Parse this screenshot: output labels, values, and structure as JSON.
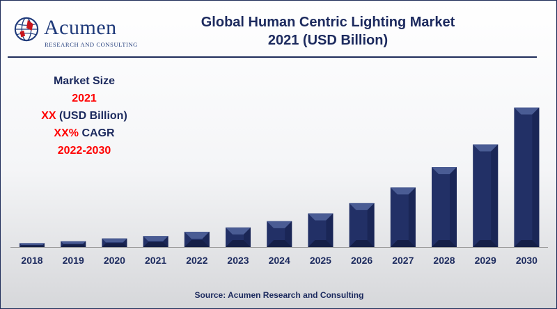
{
  "logo": {
    "name": "Acumen",
    "tagline": "RESEARCH AND CONSULTING"
  },
  "title_line1": "Global Human Centric Lighting Market",
  "title_line2": "2021 (USD Billion)",
  "info": {
    "line1": "Market Size",
    "line2": "2021",
    "line3_a": "XX",
    "line3_b": " (USD Billion)",
    "line4_a": "XX%",
    "line4_b": " CAGR",
    "line5": "2022-2030"
  },
  "source": "Source: Acumen Research and Consulting",
  "colors": {
    "bar": "#223066",
    "bar_highlight": "#4a5c94",
    "title": "#1c2a5e",
    "accent_red": "#ff0000"
  },
  "chart_data": {
    "type": "bar",
    "categories": [
      "2018",
      "2019",
      "2020",
      "2021",
      "2022",
      "2023",
      "2024",
      "2025",
      "2026",
      "2027",
      "2028",
      "2029",
      "2030"
    ],
    "values": [
      1.0,
      1.5,
      2.2,
      2.8,
      3.9,
      5.0,
      6.6,
      8.6,
      11.2,
      15.2,
      20.4,
      26.2,
      35.6
    ],
    "title": "Global Human Centric Lighting Market 2021 (USD Billion)",
    "xlabel": "",
    "ylabel": "",
    "ylim": [
      0,
      38
    ],
    "grid": false,
    "legend": "none"
  }
}
